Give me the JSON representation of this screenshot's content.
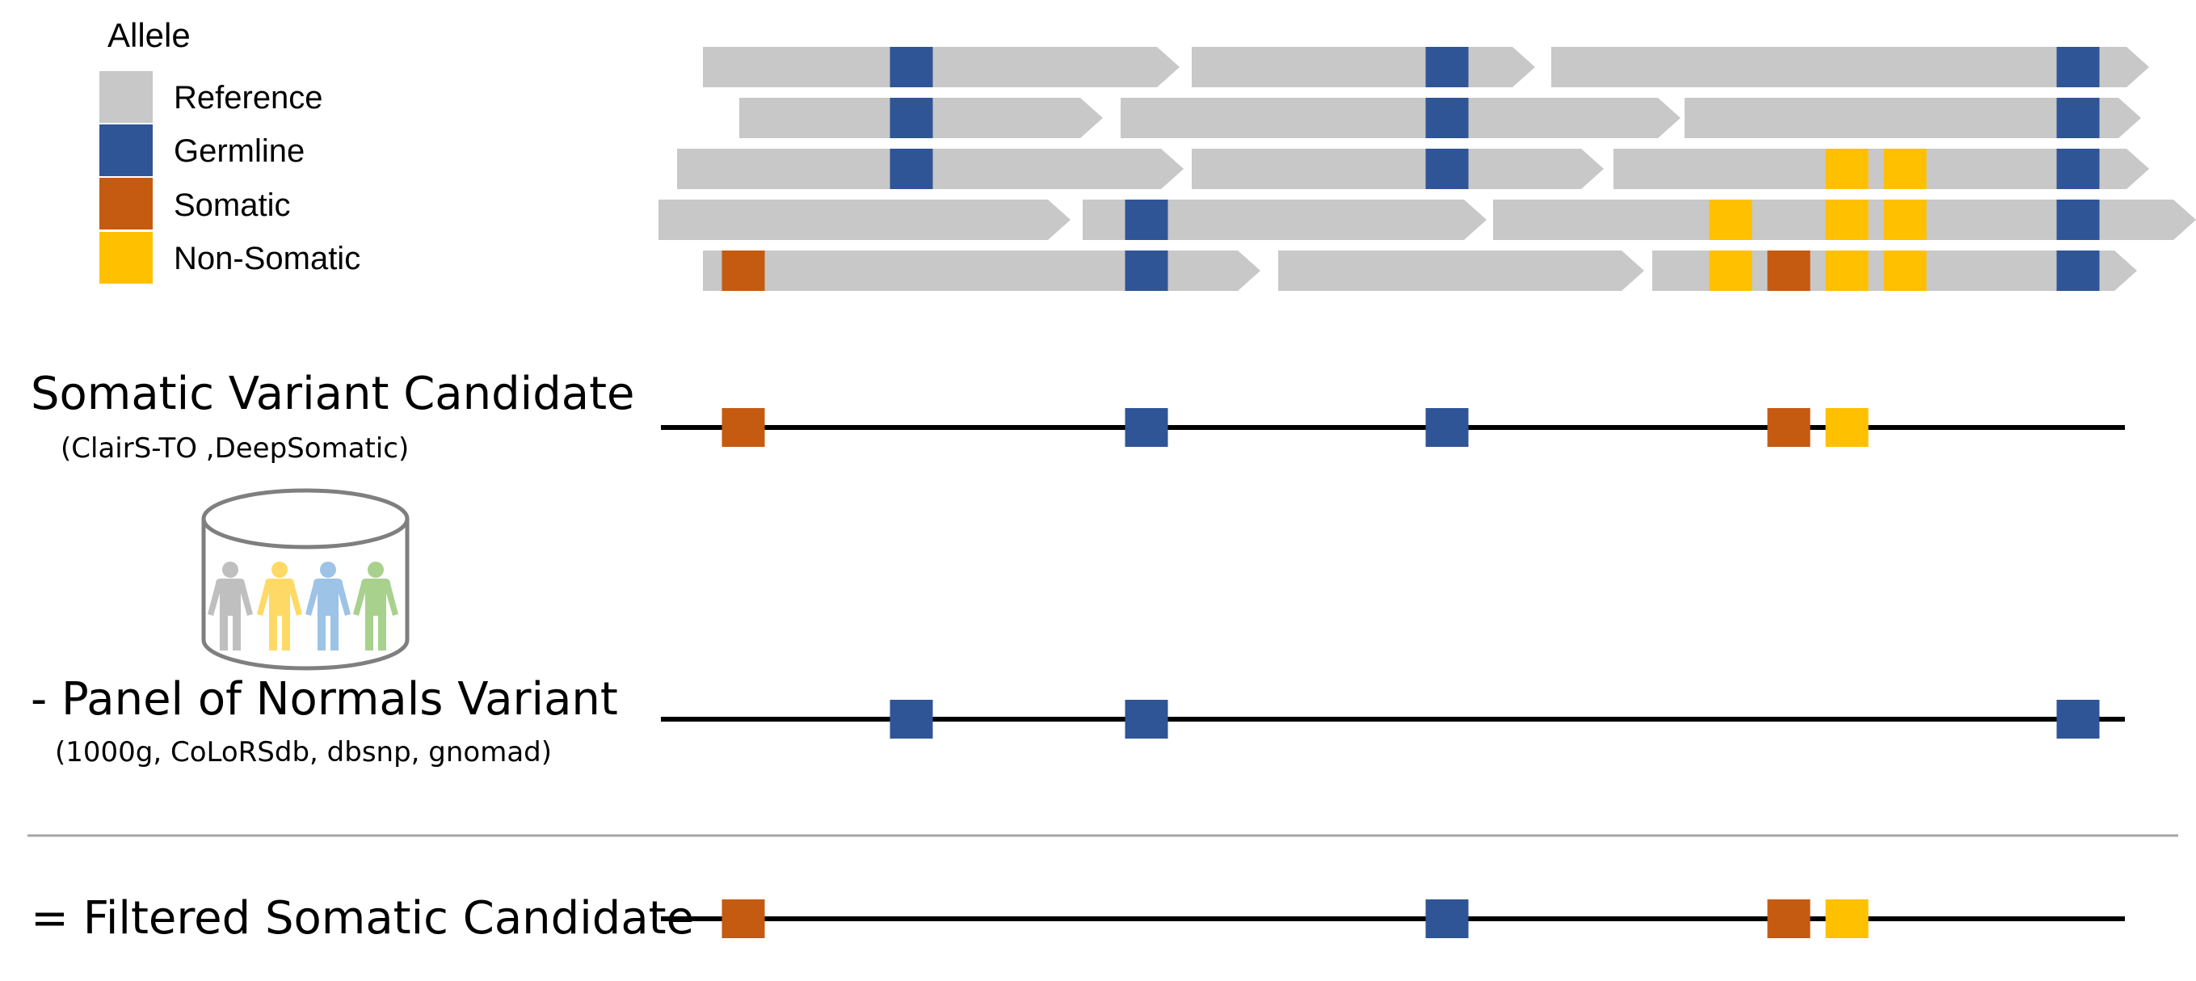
{
  "legend": {
    "title": "Allele",
    "items": [
      {
        "key": "reference",
        "label": "Reference",
        "color": "#c8c8c8"
      },
      {
        "key": "germline",
        "label": "Germline",
        "color": "#2f5597"
      },
      {
        "key": "somatic",
        "label": "Somatic",
        "color": "#c55a11"
      },
      {
        "key": "nonsomatic",
        "label": "Non-Somatic",
        "color": "#ffc000"
      }
    ]
  },
  "reads": {
    "rows": [
      [
        [
          870,
          1460
        ],
        [
          1475,
          1900
        ],
        [
          1920,
          2660
        ]
      ],
      [
        [
          915,
          1365
        ],
        [
          1387,
          2080
        ],
        [
          2085,
          2650
        ]
      ],
      [
        [
          838,
          1465
        ],
        [
          1475,
          1985
        ],
        [
          1997,
          2660
        ]
      ],
      [
        [
          815,
          1325
        ],
        [
          1340,
          1840
        ],
        [
          1848,
          2718
        ]
      ],
      [
        [
          870,
          1560
        ],
        [
          1582,
          2035
        ],
        [
          2045,
          2645
        ]
      ]
    ],
    "variants": [
      {
        "row": 0,
        "pos": 1128,
        "allele": "germline"
      },
      {
        "row": 0,
        "pos": 1791,
        "allele": "germline"
      },
      {
        "row": 0,
        "pos": 2572,
        "allele": "germline"
      },
      {
        "row": 1,
        "pos": 1128,
        "allele": "germline"
      },
      {
        "row": 1,
        "pos": 1791,
        "allele": "germline"
      },
      {
        "row": 1,
        "pos": 2572,
        "allele": "germline"
      },
      {
        "row": 2,
        "pos": 1128,
        "allele": "germline"
      },
      {
        "row": 2,
        "pos": 1791,
        "allele": "germline"
      },
      {
        "row": 2,
        "pos": 2286,
        "allele": "nonsomatic"
      },
      {
        "row": 2,
        "pos": 2358,
        "allele": "nonsomatic"
      },
      {
        "row": 2,
        "pos": 2572,
        "allele": "germline"
      },
      {
        "row": 3,
        "pos": 1419,
        "allele": "germline"
      },
      {
        "row": 3,
        "pos": 2142,
        "allele": "nonsomatic"
      },
      {
        "row": 3,
        "pos": 2286,
        "allele": "nonsomatic"
      },
      {
        "row": 3,
        "pos": 2358,
        "allele": "nonsomatic"
      },
      {
        "row": 3,
        "pos": 2572,
        "allele": "germline"
      },
      {
        "row": 4,
        "pos": 920,
        "allele": "somatic"
      },
      {
        "row": 4,
        "pos": 1419,
        "allele": "germline"
      },
      {
        "row": 4,
        "pos": 2142,
        "allele": "nonsomatic"
      },
      {
        "row": 4,
        "pos": 2214,
        "allele": "somatic"
      },
      {
        "row": 4,
        "pos": 2286,
        "allele": "nonsomatic"
      },
      {
        "row": 4,
        "pos": 2358,
        "allele": "nonsomatic"
      },
      {
        "row": 4,
        "pos": 2572,
        "allele": "germline"
      }
    ]
  },
  "tracks": [
    {
      "key": "somatic-candidate",
      "title": "Somatic Variant Candidate",
      "subtitle": "(ClairS-TO ,DeepSomatic)",
      "markers": [
        {
          "pos": 920,
          "allele": "somatic"
        },
        {
          "pos": 1419,
          "allele": "germline"
        },
        {
          "pos": 1791,
          "allele": "germline"
        },
        {
          "pos": 2214,
          "allele": "somatic"
        },
        {
          "pos": 2286,
          "allele": "nonsomatic"
        }
      ]
    },
    {
      "key": "panel-of-normals",
      "title": "- Panel of Normals Variant",
      "subtitle": "(1000g, CoLoRSdb, dbsnp, gnomad)",
      "markers": [
        {
          "pos": 1128,
          "allele": "germline"
        },
        {
          "pos": 1419,
          "allele": "germline"
        },
        {
          "pos": 2572,
          "allele": "germline"
        }
      ]
    },
    {
      "key": "filtered-candidate",
      "title": "= Filtered Somatic Candidate",
      "subtitle": "",
      "markers": [
        {
          "pos": 920,
          "allele": "somatic"
        },
        {
          "pos": 1791,
          "allele": "germline"
        },
        {
          "pos": 2214,
          "allele": "somatic"
        },
        {
          "pos": 2286,
          "allele": "nonsomatic"
        }
      ]
    }
  ],
  "database": {
    "icon": "database-people-icon",
    "people_colors": [
      "#bfbfbf",
      "#ffd966",
      "#9dc3e6",
      "#a9d18e"
    ],
    "outline_color": "#7f7f7f"
  },
  "divider_color": "#a6a6a6"
}
